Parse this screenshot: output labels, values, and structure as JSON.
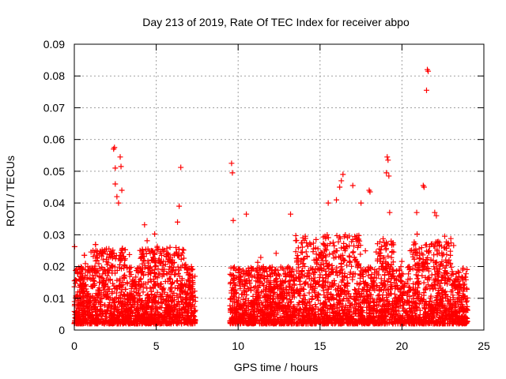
{
  "chart_data": {
    "type": "scatter",
    "title": "Day 213 of 2019, Rate Of TEC Index for receiver abpo",
    "xlabel": "GPS time / hours",
    "ylabel": "ROTI / TECUs",
    "xlim": [
      0,
      25
    ],
    "ylim": [
      0,
      0.09
    ],
    "x_ticks": [
      "0",
      "5",
      "10",
      "15",
      "20",
      "25"
    ],
    "y_ticks": [
      "0",
      "0.01",
      "0.02",
      "0.03",
      "0.04",
      "0.05",
      "0.06",
      "0.07",
      "0.08",
      "0.09"
    ],
    "grid": true,
    "marker": "+",
    "marker_color": "#ff0000",
    "data_gap": [
      7.4,
      9.5
    ],
    "series": [
      {
        "points": [
          [
            2.4,
            0.057
          ],
          [
            2.45,
            0.0575
          ],
          [
            2.5,
            0.051
          ],
          [
            2.8,
            0.0545
          ],
          [
            2.85,
            0.0515
          ],
          [
            2.5,
            0.046
          ],
          [
            2.9,
            0.044
          ],
          [
            2.6,
            0.042
          ],
          [
            2.7,
            0.04
          ],
          [
            6.5,
            0.0512
          ],
          [
            6.4,
            0.039
          ],
          [
            6.3,
            0.034
          ],
          [
            9.6,
            0.0525
          ],
          [
            9.65,
            0.0495
          ],
          [
            9.7,
            0.0345
          ],
          [
            10.5,
            0.0365
          ],
          [
            13.2,
            0.0365
          ],
          [
            15.5,
            0.04
          ],
          [
            16.0,
            0.041
          ],
          [
            16.4,
            0.049
          ],
          [
            16.3,
            0.047
          ],
          [
            16.2,
            0.045
          ],
          [
            17.0,
            0.0455
          ],
          [
            17.5,
            0.04
          ],
          [
            18.0,
            0.044
          ],
          [
            18.05,
            0.0435
          ],
          [
            19.1,
            0.0545
          ],
          [
            19.15,
            0.0535
          ],
          [
            19.05,
            0.0495
          ],
          [
            19.2,
            0.0485
          ],
          [
            19.25,
            0.037
          ],
          [
            20.9,
            0.037
          ],
          [
            21.3,
            0.0455
          ],
          [
            21.35,
            0.045
          ],
          [
            21.55,
            0.082
          ],
          [
            21.6,
            0.0815
          ],
          [
            21.5,
            0.0755
          ],
          [
            22.0,
            0.037
          ],
          [
            22.1,
            0.036
          ]
        ]
      }
    ]
  }
}
